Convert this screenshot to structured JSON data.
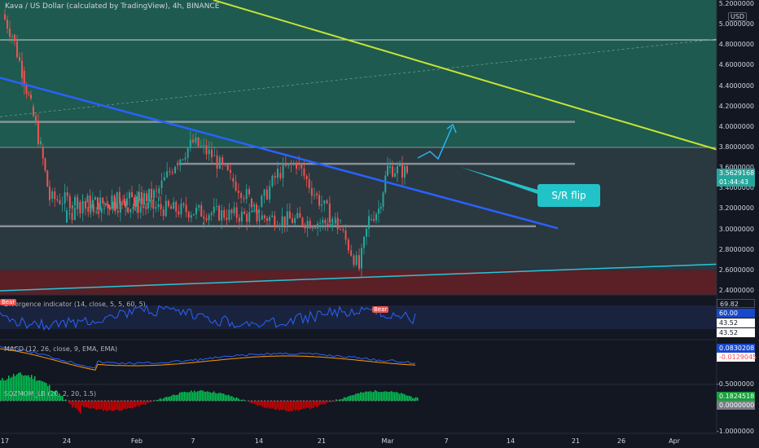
{
  "header": {
    "title": "Kava / US Dollar (calculated by TradingView), 4h, BINANCE",
    "currency": "USD"
  },
  "annotation": {
    "label": "S/R flip"
  },
  "price_badge": {
    "value": "3.5629168",
    "countdown": "01:44:43"
  },
  "colors": {
    "background": "#131722",
    "upper_zone": "#1e5a4f",
    "lower_zone": "#5a2026",
    "trend_blue": "#2962ff",
    "trend_yellow": "#c6e234",
    "support_cyan": "#26c6da",
    "sr_label": "#22c3c8",
    "up_candle": "#26a69a",
    "down_candle": "#ef5350"
  },
  "panes": {
    "rsi": {
      "title": "Divergence indicator (14, close, 5, 5, 60, 5)",
      "values": [
        "69.82",
        "60.00",
        "43.52",
        "43.52"
      ],
      "bear_label": "Bear"
    },
    "macd": {
      "title": "MACD (12, 26, close, 9, EMA, EMA)",
      "values": [
        "0.0830208",
        "-0.0129045"
      ]
    },
    "sqz": {
      "title": "SQZMOM_LB (20, 2, 20, 1.5)",
      "values": [
        "0.1824518",
        "0.0000000"
      ],
      "ticks": [
        "-0.5000000",
        "-1.0000000"
      ]
    }
  },
  "chart_data": {
    "type": "candlestick",
    "title": "Kava / US Dollar (calculated by TradingView), 4h, BINANCE",
    "y_ticks": [
      "5.2000000",
      "5.0000000",
      "4.8000000",
      "4.6000000",
      "4.4000000",
      "4.2000000",
      "4.0000000",
      "3.8000000",
      "3.6000000",
      "3.4000000",
      "3.2000000",
      "3.0000000",
      "2.8000000",
      "2.6000000",
      "2.4000000"
    ],
    "x_ticks": [
      "17",
      "24",
      "Feb",
      "7",
      "14",
      "21",
      "Mar",
      "7",
      "14",
      "21",
      "26",
      "Apr"
    ],
    "ylim": [
      2.4,
      5.2
    ],
    "horizontal_levels": [
      4.85,
      4.05,
      3.8,
      3.64,
      3.03
    ],
    "price_path": [
      [
        "17",
        5.1
      ],
      [
        "18",
        4.9
      ],
      [
        "19",
        4.55
      ],
      [
        "20",
        4.2
      ],
      [
        "21",
        3.8
      ],
      [
        "22",
        3.3
      ],
      [
        "23",
        3.05
      ],
      [
        "24",
        3.15
      ],
      [
        "26",
        3.22
      ],
      [
        "28",
        3.25
      ],
      [
        "30",
        3.3
      ],
      [
        "Feb",
        3.28
      ],
      [
        "3",
        3.35
      ],
      [
        "5",
        3.65
      ],
      [
        "7",
        3.85
      ],
      [
        "9",
        3.72
      ],
      [
        "11",
        3.5
      ],
      [
        "13",
        3.3
      ],
      [
        "14",
        3.22
      ],
      [
        "16",
        3.55
      ],
      [
        "18",
        3.65
      ],
      [
        "20",
        3.35
      ],
      [
        "21",
        3.25
      ],
      [
        "23",
        3.0
      ],
      [
        "25",
        2.62
      ],
      [
        "26",
        3.1
      ],
      [
        "28",
        3.2
      ],
      [
        "Mar",
        3.6
      ],
      [
        "2",
        3.56
      ]
    ],
    "trendlines": [
      {
        "name": "blue-resistance",
        "from": [
          "17",
          4.48
        ],
        "to": [
          "14",
          3.01
        ]
      },
      {
        "name": "yellow-resistance",
        "from": [
          "7",
          5.25
        ],
        "to": [
          "Apr",
          3.78
        ]
      },
      {
        "name": "cyan-support",
        "from": [
          "17",
          2.4
        ],
        "to": [
          "Apr",
          2.66
        ]
      }
    ],
    "last_price": 3.5629168
  }
}
